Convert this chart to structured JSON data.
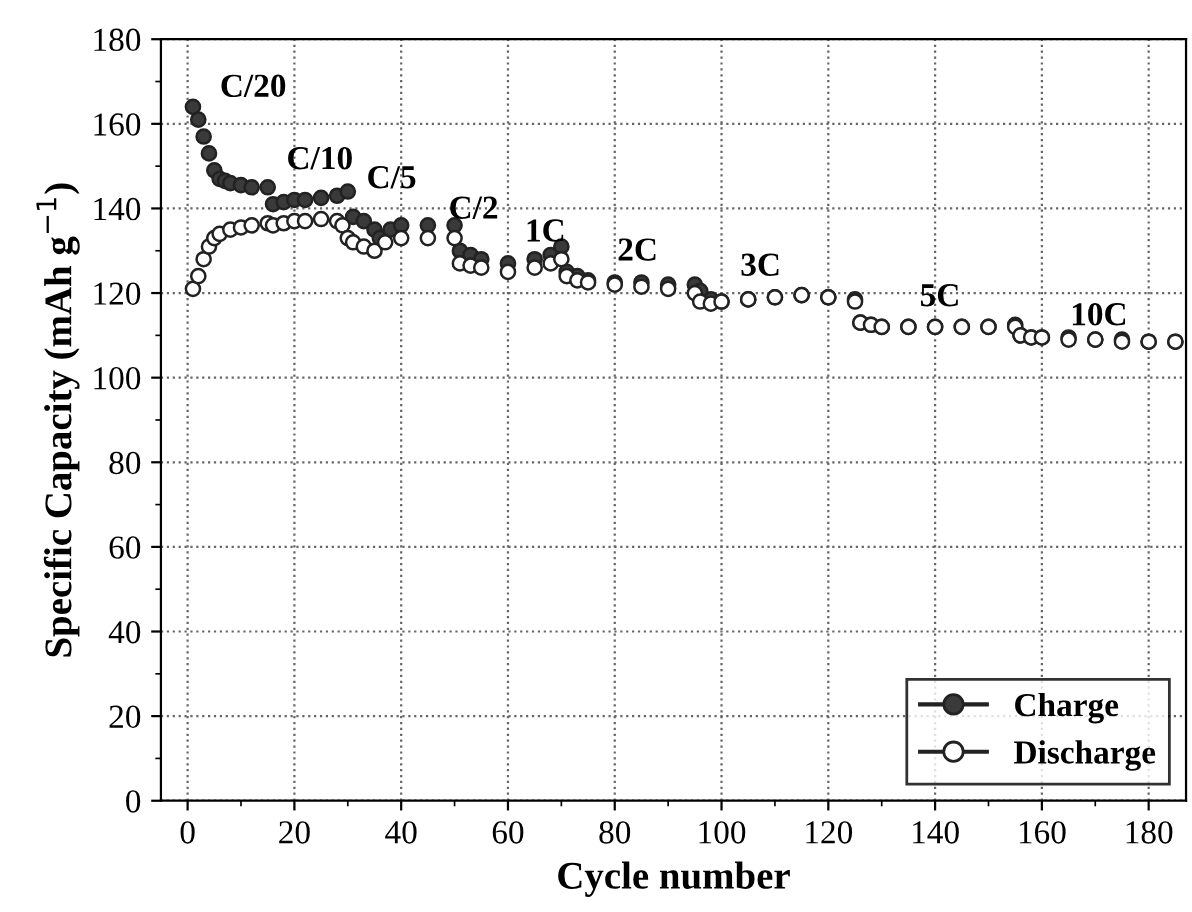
{
  "chart_data": {
    "type": "scatter",
    "xlabel": "Cycle number",
    "ylabel": "Specific Capacity (mAh g$^{−1}$)",
    "xlim": [
      -5,
      187
    ],
    "ylim": [
      0,
      180
    ],
    "xticks": [
      0,
      20,
      40,
      60,
      80,
      100,
      120,
      140,
      160,
      180
    ],
    "yticks": [
      0,
      20,
      40,
      60,
      80,
      100,
      120,
      140,
      160,
      180
    ],
    "grid": true,
    "legend": "bottom right",
    "marker": "circle",
    "series": [
      {
        "name": "Charge",
        "color": "#3a3a3a",
        "x": [
          1,
          2,
          3,
          4,
          5,
          6,
          7,
          8,
          10,
          12,
          15,
          16,
          18,
          20,
          22,
          25,
          28,
          30,
          31,
          33,
          35,
          36,
          38,
          40,
          45,
          50,
          51,
          53,
          55,
          60,
          65,
          68,
          70,
          71,
          73,
          75,
          80,
          85,
          90,
          95,
          96,
          98,
          100,
          105,
          110,
          115,
          120,
          125,
          126,
          128,
          130,
          135,
          140,
          145,
          150,
          155,
          156,
          158,
          160,
          165,
          170,
          175,
          180,
          185
        ],
        "values": [
          164,
          161,
          157,
          153,
          149,
          147,
          146.5,
          146,
          145.5,
          145,
          145,
          141,
          141.5,
          142,
          142,
          142.5,
          143,
          144,
          138,
          137,
          135,
          133,
          135,
          136,
          136,
          136,
          130,
          129,
          128,
          127,
          128,
          129,
          131,
          125,
          124,
          123,
          122.5,
          122.5,
          122,
          122,
          120.5,
          118.5,
          118,
          118.5,
          119,
          119.5,
          119,
          118.5,
          113,
          112.5,
          112,
          112,
          112,
          112,
          112,
          112.5,
          110,
          109.5,
          109.5,
          109.5,
          109,
          109,
          108.5,
          108.5
        ]
      },
      {
        "name": "Discharge",
        "color": "#ffffff",
        "x": [
          1,
          2,
          3,
          4,
          5,
          6,
          8,
          10,
          12,
          15,
          16,
          18,
          20,
          22,
          25,
          28,
          29,
          30,
          31,
          33,
          35,
          37,
          40,
          45,
          50,
          51,
          53,
          55,
          60,
          65,
          68,
          70,
          71,
          73,
          75,
          80,
          85,
          90,
          95,
          96,
          98,
          100,
          105,
          110,
          115,
          120,
          125,
          126,
          128,
          130,
          135,
          140,
          145,
          150,
          155,
          156,
          158,
          160,
          165,
          170,
          175,
          180,
          185
        ],
        "values": [
          121,
          124,
          128,
          131,
          133,
          134,
          135,
          135.5,
          136,
          136.5,
          136,
          136.5,
          137,
          137,
          137.5,
          137,
          136,
          133,
          132,
          131,
          130,
          132,
          133,
          133,
          133,
          127,
          126.5,
          126,
          125,
          126,
          127,
          128,
          124,
          123,
          122.5,
          122,
          121.5,
          121,
          120,
          118,
          117.5,
          118,
          118.5,
          119,
          119.5,
          119,
          118,
          113,
          112.5,
          112,
          112,
          112,
          112,
          112,
          112,
          110,
          109.5,
          109.5,
          109,
          109,
          108.5,
          108.5,
          108.5
        ]
      }
    ],
    "annotations": [
      "C/20",
      "C/10",
      "C/5",
      "C/2",
      "1C",
      "2C",
      "3C",
      "5C",
      "10C"
    ]
  }
}
